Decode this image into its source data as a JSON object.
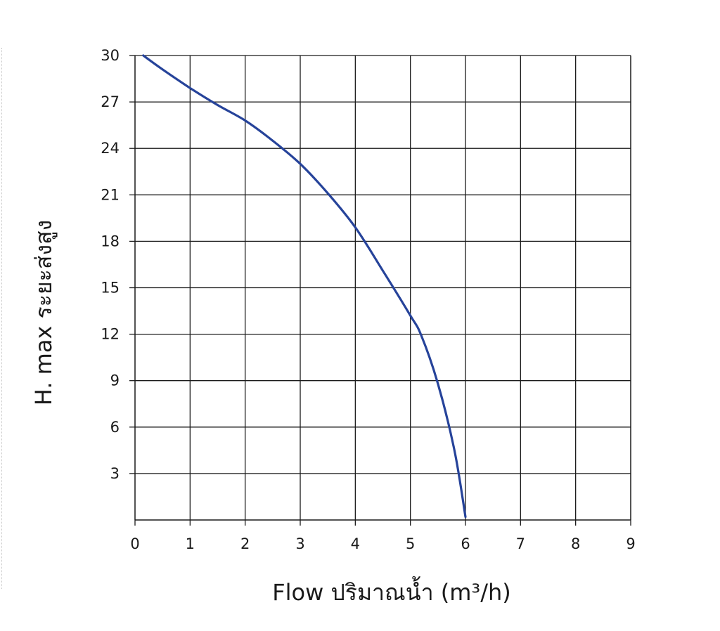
{
  "chart_data": {
    "type": "line",
    "xlabel": "Flow  ปริมาณน้ำ (m³/h)",
    "ylabel": "H. max  ระยะส่งสูง",
    "xlim": [
      0,
      9
    ],
    "ylim": [
      0,
      30
    ],
    "grid": true,
    "x_ticks": [
      "0",
      "1",
      "2",
      "3",
      "4",
      "5",
      "6",
      "7",
      "8",
      "9"
    ],
    "y_ticks": [
      "3",
      "6",
      "9",
      "12",
      "15",
      "18",
      "21",
      "24",
      "27",
      "30"
    ],
    "line_color": "#26439a",
    "series": [
      {
        "x": [
          0.15,
          0.5,
          1.0,
          1.5,
          2.0,
          2.5,
          3.0,
          3.5,
          4.0,
          4.5,
          5.0,
          5.2,
          5.5,
          5.8,
          6.0
        ],
        "y": [
          30,
          29.1,
          27.9,
          26.8,
          25.8,
          24.5,
          23.0,
          21.1,
          18.9,
          16.1,
          13.2,
          11.9,
          8.8,
          4.5,
          0.2
        ]
      }
    ]
  }
}
